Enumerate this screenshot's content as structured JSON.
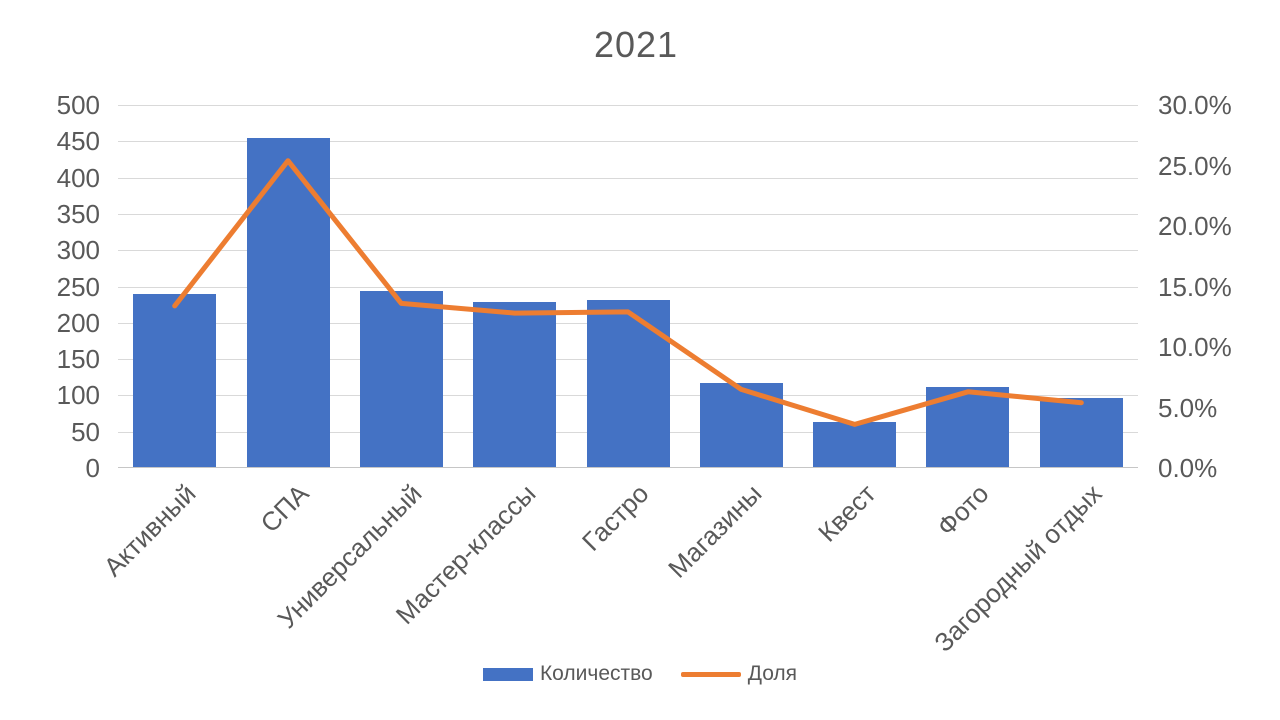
{
  "title": "2021",
  "legend": {
    "bar_label": "Количество",
    "line_label": "Доля"
  },
  "left_axis": {
    "ticks": [
      "0",
      "50",
      "100",
      "150",
      "200",
      "250",
      "300",
      "350",
      "400",
      "450",
      "500"
    ]
  },
  "right_axis": {
    "ticks": [
      "0.0%",
      "5.0%",
      "10.0%",
      "15.0%",
      "20.0%",
      "25.0%",
      "30.0%"
    ]
  },
  "colors": {
    "bar": "#4472C4",
    "line": "#ED7D31",
    "text": "#595959",
    "gridline": "#D9D9D9",
    "axis_line": "#C6C6C6"
  },
  "chart_data": {
    "type": "bar",
    "subtype": "combo-bar-line",
    "title": "2021",
    "categories": [
      "Активный",
      "СПА",
      "Универсальный",
      "Мастер-классы",
      "Гастро",
      "Магазины",
      "Квест",
      "Фото",
      "Загородный отдых"
    ],
    "series": [
      {
        "name": "Количество",
        "type": "bar",
        "axis": "left",
        "values": [
          240,
          455,
          244,
          228,
          231,
          117,
          64,
          112,
          97
        ]
      },
      {
        "name": "Доля",
        "type": "line",
        "axis": "right",
        "unit": "%",
        "values": [
          13.4,
          25.4,
          13.6,
          12.8,
          12.9,
          6.5,
          3.6,
          6.3,
          5.4
        ]
      }
    ],
    "left_ylim": [
      0,
      500
    ],
    "left_step": 50,
    "right_ylim": [
      0,
      30
    ],
    "right_step": 5,
    "grid": true,
    "legend_position": "bottom"
  }
}
